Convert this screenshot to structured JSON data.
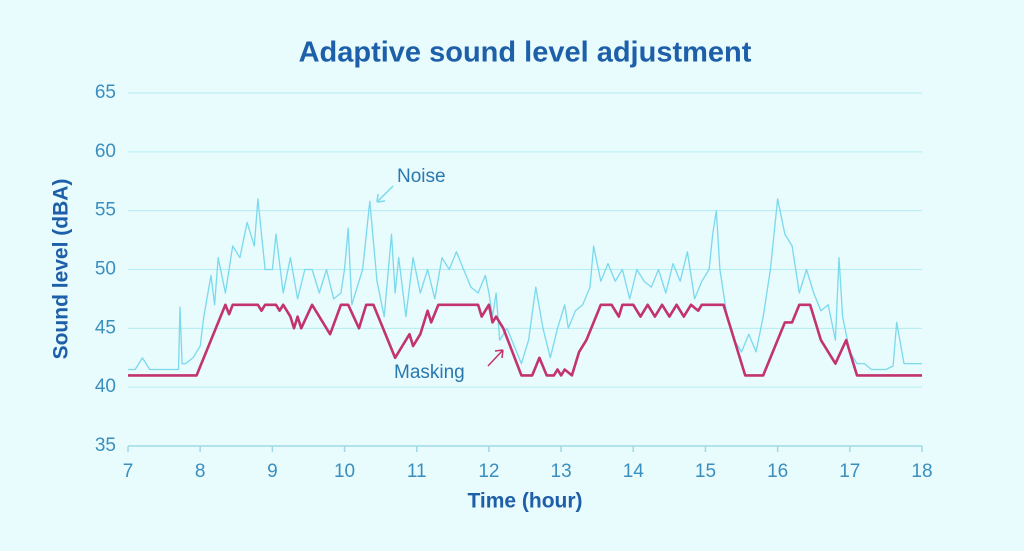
{
  "chart_data": {
    "type": "line",
    "title": "Adaptive sound level adjustment",
    "x_label": "Time (hour)",
    "y_label": "Sound level (dBA)",
    "xlim": [
      7,
      18
    ],
    "xticks": [
      7,
      8,
      9,
      10,
      11,
      12,
      13,
      14,
      15,
      16,
      17,
      18
    ],
    "ylim": [
      35,
      65
    ],
    "yticks": [
      35,
      40,
      45,
      50,
      55,
      60,
      65
    ],
    "grid": true,
    "annotations": [
      "Noise",
      "Masking"
    ],
    "series": [
      {
        "name": "Noise",
        "color": "#7ad9ec",
        "x": [
          7.0,
          7.1,
          7.2,
          7.3,
          7.4,
          7.5,
          7.6,
          7.7,
          7.72,
          7.75,
          7.8,
          7.9,
          8.0,
          8.05,
          8.15,
          8.2,
          8.25,
          8.35,
          8.45,
          8.55,
          8.65,
          8.75,
          8.8,
          8.9,
          9.0,
          9.05,
          9.15,
          9.25,
          9.35,
          9.45,
          9.55,
          9.65,
          9.75,
          9.85,
          9.95,
          10.0,
          10.05,
          10.1,
          10.15,
          10.25,
          10.35,
          10.45,
          10.55,
          10.65,
          10.7,
          10.75,
          10.85,
          10.95,
          11.05,
          11.15,
          11.25,
          11.35,
          11.45,
          11.55,
          11.65,
          11.75,
          11.85,
          11.95,
          12.0,
          12.05,
          12.1,
          12.15,
          12.25,
          12.35,
          12.45,
          12.55,
          12.65,
          12.75,
          12.85,
          12.95,
          13.05,
          13.1,
          13.2,
          13.3,
          13.4,
          13.45,
          13.55,
          13.65,
          13.75,
          13.85,
          13.95,
          14.05,
          14.15,
          14.25,
          14.35,
          14.45,
          14.55,
          14.65,
          14.75,
          14.85,
          14.95,
          15.05,
          15.1,
          15.15,
          15.2,
          15.3,
          15.4,
          15.5,
          15.6,
          15.7,
          15.8,
          15.9,
          16.0,
          16.1,
          16.2,
          16.3,
          16.4,
          16.5,
          16.6,
          16.7,
          16.8,
          16.85,
          16.9,
          17.0,
          17.1,
          17.2,
          17.3,
          17.5,
          17.6,
          17.65,
          17.75,
          17.85,
          17.95,
          18.0
        ],
        "values": [
          41.5,
          41.5,
          42.5,
          41.5,
          41.5,
          41.5,
          41.5,
          41.5,
          46.8,
          42,
          42,
          42.5,
          43.5,
          46,
          49.5,
          47,
          51,
          48,
          52,
          51,
          54,
          52,
          56,
          50,
          50,
          53,
          48,
          51,
          47.5,
          50,
          50,
          48,
          50,
          47.5,
          48,
          50,
          53.5,
          47,
          48,
          50,
          55.8,
          49,
          46,
          53,
          48,
          51,
          46,
          51,
          48,
          50,
          47.5,
          51,
          50,
          51.5,
          50,
          48.5,
          48,
          49.5,
          48,
          46,
          48,
          44,
          45,
          43.5,
          42,
          44,
          48.5,
          45,
          42.5,
          45,
          47,
          45,
          46.5,
          47,
          48.5,
          52,
          49,
          50.5,
          49,
          50,
          47.5,
          50,
          49,
          48.5,
          50,
          48,
          50.5,
          49,
          51.5,
          47.5,
          49,
          50,
          53,
          55,
          50,
          46,
          44,
          43,
          44.5,
          43,
          46,
          50,
          56,
          53,
          52,
          48,
          50,
          48,
          46.5,
          47,
          44,
          51,
          46,
          43,
          42,
          42,
          41.5,
          41.5,
          41.8,
          45.5,
          42,
          42,
          42,
          42
        ]
      },
      {
        "name": "Masking",
        "color": "#c2336f",
        "x": [
          7.0,
          7.95,
          8.35,
          8.4,
          8.45,
          8.8,
          8.85,
          8.9,
          9.05,
          9.1,
          9.15,
          9.25,
          9.3,
          9.35,
          9.4,
          9.55,
          9.6,
          9.7,
          9.8,
          9.95,
          10.05,
          10.2,
          10.3,
          10.4,
          10.6,
          10.7,
          10.8,
          10.9,
          10.95,
          11.05,
          11.15,
          11.2,
          11.3,
          11.85,
          11.9,
          12.0,
          12.05,
          12.1,
          12.2,
          12.45,
          12.6,
          12.7,
          12.8,
          12.9,
          12.95,
          13.0,
          13.05,
          13.15,
          13.25,
          13.35,
          13.55,
          13.7,
          13.8,
          13.85,
          14.0,
          14.1,
          14.2,
          14.3,
          14.4,
          14.5,
          14.6,
          14.7,
          14.8,
          14.9,
          14.95,
          15.25,
          15.55,
          15.8,
          16.0,
          16.1,
          16.2,
          16.3,
          16.45,
          16.6,
          16.8,
          16.95,
          17.1,
          18.0
        ],
        "values": [
          41,
          41,
          47,
          46.2,
          47,
          47,
          46.5,
          47,
          47,
          46.5,
          47,
          46,
          45,
          46,
          45,
          47,
          46.5,
          45.5,
          44.5,
          47,
          47,
          45,
          47,
          47,
          44,
          42.5,
          43.5,
          44.5,
          43.5,
          44.5,
          46.5,
          45.5,
          47,
          47,
          46,
          47,
          45.5,
          46,
          45,
          41,
          41,
          42.5,
          41,
          41,
          41.5,
          41,
          41.5,
          41,
          43,
          44,
          47,
          47,
          46,
          47,
          47,
          46,
          47,
          46,
          47,
          46,
          47,
          46,
          47,
          46.5,
          47,
          47,
          41,
          41,
          44,
          45.5,
          45.5,
          47,
          47,
          44,
          42,
          44,
          41,
          41
        ]
      }
    ]
  }
}
